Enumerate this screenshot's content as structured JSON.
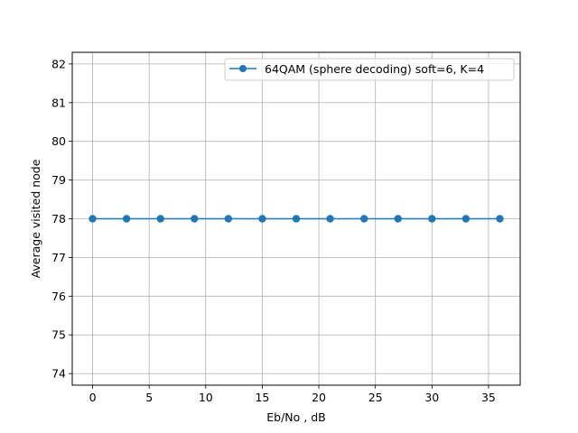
{
  "chart_data": {
    "type": "line",
    "title": "",
    "xlabel": "Eb/No , dB",
    "ylabel": "Average visited node",
    "xlim": [
      -1.8,
      37.8
    ],
    "ylim": [
      73.7,
      82.3
    ],
    "xticks": [
      0,
      5,
      10,
      15,
      20,
      25,
      30,
      35
    ],
    "yticks": [
      74,
      75,
      76,
      77,
      78,
      79,
      80,
      81,
      82
    ],
    "grid": true,
    "legend_position": "top-right",
    "series": [
      {
        "name": "64QAM (sphere decoding) soft=6, K=4",
        "color": "#1f77b4",
        "marker": "circle",
        "x": [
          0,
          3,
          6,
          9,
          12,
          15,
          18,
          21,
          24,
          27,
          30,
          33,
          36
        ],
        "y": [
          78,
          78,
          78,
          78,
          78,
          78,
          78,
          78,
          78,
          78,
          78,
          78,
          78
        ]
      }
    ]
  }
}
